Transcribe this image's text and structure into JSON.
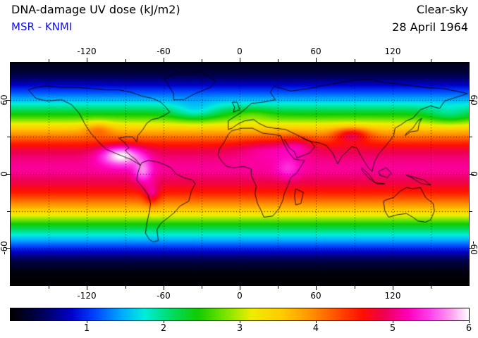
{
  "header": {
    "title": "DNA-damage UV dose (kJ/m2)",
    "source": "MSR - KNMI",
    "source_color": "#1111ee",
    "condition": "Clear-sky",
    "date": "28 April 1964"
  },
  "chart_data": {
    "type": "heatmap",
    "projection": "equirectangular",
    "title": "DNA-damage UV dose (kJ/m2)",
    "subtitle": "MSR - KNMI",
    "condition": "Clear-sky",
    "date": "28 April 1964",
    "xlim": [
      -180,
      180
    ],
    "ylim": [
      -90,
      90
    ],
    "x_grid_step": 30,
    "y_grid_step": 30,
    "x_tick_labels": [
      -120,
      -60,
      0,
      60,
      120
    ],
    "y_tick_labels": [
      60,
      0,
      -60
    ],
    "grid": "dotted",
    "unit": "kJ/m2",
    "colorbar": {
      "min": 0,
      "max": 6,
      "tick_labels": [
        1,
        2,
        3,
        4,
        5,
        6
      ],
      "stops": [
        [
          0.0,
          "#000000"
        ],
        [
          0.4,
          "#000055"
        ],
        [
          0.8,
          "#0000cc"
        ],
        [
          1.1,
          "#0044ff"
        ],
        [
          1.45,
          "#00aaff"
        ],
        [
          1.75,
          "#00eedd"
        ],
        [
          2.1,
          "#00dd66"
        ],
        [
          2.45,
          "#11cc00"
        ],
        [
          2.8,
          "#77e400"
        ],
        [
          3.15,
          "#eeee00"
        ],
        [
          3.55,
          "#ffcc00"
        ],
        [
          3.9,
          "#ff9900"
        ],
        [
          4.25,
          "#ff5500"
        ],
        [
          4.6,
          "#ff1100"
        ],
        [
          4.9,
          "#ee0055"
        ],
        [
          5.2,
          "#ff00bb"
        ],
        [
          5.5,
          "#ff44ee"
        ],
        [
          5.75,
          "#ff99ee"
        ],
        [
          6.0,
          "#ffffff"
        ]
      ]
    },
    "lat_profile": {
      "lats": [
        90,
        85,
        80,
        75,
        70,
        65,
        60,
        55,
        50,
        45,
        40,
        35,
        30,
        25,
        20,
        15,
        10,
        5,
        0,
        -5,
        -10,
        -15,
        -20,
        -25,
        -30,
        -35,
        -40,
        -45,
        -50,
        -55,
        -60,
        -65,
        -70,
        -80,
        -90
      ],
      "values": [
        0.12,
        0.2,
        0.35,
        0.6,
        0.9,
        1.2,
        1.5,
        1.9,
        2.3,
        2.7,
        3.2,
        3.7,
        4.1,
        4.5,
        4.8,
        4.95,
        5.05,
        5.1,
        5.05,
        4.9,
        4.75,
        4.55,
        4.25,
        3.9,
        3.5,
        3.0,
        2.5,
        2.1,
        1.7,
        1.35,
        1.0,
        0.65,
        0.35,
        0.05,
        0.0
      ]
    },
    "anomalies": [
      {
        "lon": -93,
        "lat": 15,
        "amp": 1.05,
        "rx": 16,
        "ry": 8
      },
      {
        "lon": -76,
        "lat": 2,
        "amp": 0.6,
        "rx": 7,
        "ry": 10
      },
      {
        "lon": -69,
        "lat": -17,
        "amp": 0.55,
        "rx": 6,
        "ry": 9
      },
      {
        "lon": -111,
        "lat": 37,
        "amp": 0.45,
        "rx": 11,
        "ry": 6
      },
      {
        "lon": 88,
        "lat": 32,
        "amp": 0.85,
        "rx": 14,
        "ry": 6
      },
      {
        "lon": 25,
        "lat": 21,
        "amp": 0.3,
        "rx": 26,
        "ry": 10
      },
      {
        "lon": 45,
        "lat": 24,
        "amp": 0.3,
        "rx": 12,
        "ry": 8
      },
      {
        "lon": 38,
        "lat": 4,
        "amp": 0.3,
        "rx": 9,
        "ry": 9
      },
      {
        "lon": -35,
        "lat": 50,
        "amp": -0.5,
        "rx": 18,
        "ry": 8
      },
      {
        "lon": 165,
        "lat": 47,
        "amp": -0.4,
        "rx": 18,
        "ry": 8
      },
      {
        "lon": 10,
        "lat": 48,
        "amp": 0.25,
        "rx": 15,
        "ry": 6
      }
    ],
    "coastlines": [
      {
        "name": "north-america",
        "pts": [
          [
            -166,
            68
          ],
          [
            -160,
            61
          ],
          [
            -151,
            59
          ],
          [
            -140,
            60
          ],
          [
            -132,
            56
          ],
          [
            -126,
            49
          ],
          [
            -122,
            41
          ],
          [
            -117,
            33
          ],
          [
            -110,
            25
          ],
          [
            -105,
            20
          ],
          [
            -96,
            16
          ],
          [
            -91,
            14
          ],
          [
            -86,
            12
          ],
          [
            -81,
            9
          ],
          [
            -78,
            7
          ],
          [
            -82,
            12
          ],
          [
            -86,
            15
          ],
          [
            -90,
            19
          ],
          [
            -87,
            21
          ],
          [
            -91,
            26
          ],
          [
            -95,
            29
          ],
          [
            -89,
            30
          ],
          [
            -84,
            30
          ],
          [
            -81,
            26
          ],
          [
            -80,
            31
          ],
          [
            -76,
            36
          ],
          [
            -73,
            41
          ],
          [
            -69,
            44
          ],
          [
            -64,
            45
          ],
          [
            -60,
            47
          ],
          [
            -55,
            50
          ],
          [
            -58,
            54
          ],
          [
            -62,
            58
          ],
          [
            -68,
            61
          ],
          [
            -77,
            63
          ],
          [
            -85,
            66
          ],
          [
            -95,
            68
          ],
          [
            -105,
            68
          ],
          [
            -115,
            69
          ],
          [
            -128,
            70
          ],
          [
            -140,
            70
          ],
          [
            -152,
            71
          ],
          [
            -160,
            70
          ],
          [
            -166,
            68
          ]
        ]
      },
      {
        "name": "south-america",
        "pts": [
          [
            -78,
            7
          ],
          [
            -80,
            1
          ],
          [
            -81,
            -5
          ],
          [
            -76,
            -11
          ],
          [
            -72,
            -17
          ],
          [
            -70,
            -24
          ],
          [
            -71,
            -31
          ],
          [
            -73,
            -40
          ],
          [
            -74,
            -48
          ],
          [
            -71,
            -53
          ],
          [
            -68,
            -55
          ],
          [
            -64,
            -54
          ],
          [
            -65,
            -45
          ],
          [
            -62,
            -40
          ],
          [
            -57,
            -36
          ],
          [
            -51,
            -31
          ],
          [
            -47,
            -26
          ],
          [
            -40,
            -22
          ],
          [
            -38,
            -14
          ],
          [
            -35,
            -8
          ],
          [
            -37,
            -5
          ],
          [
            -44,
            -3
          ],
          [
            -50,
            0
          ],
          [
            -54,
            5
          ],
          [
            -60,
            8
          ],
          [
            -66,
            10
          ],
          [
            -72,
            11
          ],
          [
            -77,
            9
          ],
          [
            -78,
            7
          ]
        ]
      },
      {
        "name": "africa",
        "pts": [
          [
            -6,
            35
          ],
          [
            2,
            37
          ],
          [
            10,
            37
          ],
          [
            18,
            33
          ],
          [
            26,
            32
          ],
          [
            32,
            31
          ],
          [
            35,
            24
          ],
          [
            38,
            18
          ],
          [
            43,
            12
          ],
          [
            48,
            11
          ],
          [
            51,
            11
          ],
          [
            45,
            1
          ],
          [
            40,
            -3
          ],
          [
            38,
            -9
          ],
          [
            35,
            -16
          ],
          [
            34,
            -21
          ],
          [
            31,
            -28
          ],
          [
            26,
            -34
          ],
          [
            19,
            -35
          ],
          [
            17,
            -30
          ],
          [
            14,
            -24
          ],
          [
            12,
            -16
          ],
          [
            13,
            -10
          ],
          [
            9,
            -1
          ],
          [
            9,
            4
          ],
          [
            3,
            6
          ],
          [
            -5,
            5
          ],
          [
            -10,
            6
          ],
          [
            -14,
            10
          ],
          [
            -17,
            15
          ],
          [
            -16,
            20
          ],
          [
            -12,
            26
          ],
          [
            -9,
            32
          ],
          [
            -6,
            35
          ]
        ]
      },
      {
        "name": "eurasia",
        "pts": [
          [
            -9,
            36
          ],
          [
            -9,
            43
          ],
          [
            -3,
            47
          ],
          [
            0,
            49
          ],
          [
            5,
            53
          ],
          [
            9,
            57
          ],
          [
            18,
            58
          ],
          [
            28,
            60
          ],
          [
            24,
            66
          ],
          [
            27,
            71
          ],
          [
            40,
            67
          ],
          [
            54,
            69
          ],
          [
            68,
            72
          ],
          [
            85,
            75
          ],
          [
            100,
            77
          ],
          [
            113,
            74
          ],
          [
            130,
            72
          ],
          [
            145,
            70
          ],
          [
            160,
            69
          ],
          [
            170,
            67
          ],
          [
            179,
            65
          ],
          [
            170,
            62
          ],
          [
            161,
            59
          ],
          [
            157,
            53
          ],
          [
            150,
            55
          ],
          [
            142,
            52
          ],
          [
            136,
            45
          ],
          [
            131,
            43
          ],
          [
            127,
            40
          ],
          [
            122,
            37
          ],
          [
            121,
            31
          ],
          [
            115,
            23
          ],
          [
            109,
            16
          ],
          [
            106,
            10
          ],
          [
            104,
            2
          ],
          [
            101,
            5
          ],
          [
            98,
            10
          ],
          [
            95,
            15
          ],
          [
            92,
            21
          ],
          [
            88,
            22
          ],
          [
            84,
            18
          ],
          [
            80,
            14
          ],
          [
            77,
            8
          ],
          [
            73,
            17
          ],
          [
            68,
            23
          ],
          [
            63,
            25
          ],
          [
            57,
            26
          ],
          [
            51,
            28
          ],
          [
            48,
            30
          ],
          [
            42,
            33
          ],
          [
            36,
            36
          ],
          [
            27,
            37
          ],
          [
            21,
            38
          ],
          [
            15,
            41
          ],
          [
            11,
            44
          ],
          [
            4,
            43
          ],
          [
            -2,
            40
          ],
          [
            -6,
            37
          ],
          [
            -9,
            36
          ]
        ]
      },
      {
        "name": "arabia",
        "pts": [
          [
            48,
            30
          ],
          [
            56,
            26
          ],
          [
            59,
            22
          ],
          [
            55,
            17
          ],
          [
            45,
            13
          ],
          [
            43,
            18
          ],
          [
            39,
            21
          ],
          [
            35,
            28
          ]
        ]
      },
      {
        "name": "greenland",
        "pts": [
          [
            -52,
            60
          ],
          [
            -44,
            60
          ],
          [
            -35,
            65
          ],
          [
            -23,
            70
          ],
          [
            -19,
            75
          ],
          [
            -29,
            82
          ],
          [
            -48,
            82
          ],
          [
            -59,
            77
          ],
          [
            -55,
            70
          ],
          [
            -52,
            65
          ],
          [
            -52,
            60
          ]
        ]
      },
      {
        "name": "australia",
        "pts": [
          [
            113,
            -22
          ],
          [
            114,
            -30
          ],
          [
            117,
            -35
          ],
          [
            124,
            -33
          ],
          [
            131,
            -32
          ],
          [
            136,
            -35
          ],
          [
            140,
            -38
          ],
          [
            146,
            -39
          ],
          [
            150,
            -37
          ],
          [
            153,
            -30
          ],
          [
            152,
            -24
          ],
          [
            146,
            -19
          ],
          [
            142,
            -11
          ],
          [
            136,
            -12
          ],
          [
            131,
            -11
          ],
          [
            126,
            -14
          ],
          [
            121,
            -19
          ],
          [
            115,
            -21
          ],
          [
            113,
            -22
          ]
        ]
      },
      {
        "name": "madagascar",
        "pts": [
          [
            44,
            -12
          ],
          [
            50,
            -15
          ],
          [
            48,
            -24
          ],
          [
            44,
            -25
          ],
          [
            43,
            -18
          ],
          [
            44,
            -12
          ]
        ]
      },
      {
        "name": "new-guinea",
        "pts": [
          [
            131,
            -1
          ],
          [
            138,
            -3
          ],
          [
            145,
            -5
          ],
          [
            150,
            -9
          ],
          [
            143,
            -8
          ],
          [
            135,
            -3
          ],
          [
            131,
            -1
          ]
        ]
      },
      {
        "name": "borneo",
        "pts": [
          [
            109,
            2
          ],
          [
            115,
            5
          ],
          [
            119,
            1
          ],
          [
            116,
            -3
          ],
          [
            110,
            -1
          ],
          [
            109,
            2
          ]
        ]
      },
      {
        "name": "sumatra-java",
        "pts": [
          [
            96,
            5
          ],
          [
            102,
            -1
          ],
          [
            106,
            -7
          ],
          [
            114,
            -8
          ],
          [
            108,
            -8
          ],
          [
            102,
            -4
          ],
          [
            96,
            3
          ],
          [
            96,
            5
          ]
        ]
      },
      {
        "name": "japan",
        "pts": [
          [
            130,
            31
          ],
          [
            134,
            34
          ],
          [
            140,
            35
          ],
          [
            141,
            41
          ],
          [
            143,
            45
          ],
          [
            140,
            43
          ],
          [
            136,
            37
          ],
          [
            131,
            33
          ],
          [
            130,
            31
          ]
        ]
      },
      {
        "name": "britain",
        "pts": [
          [
            -5,
            50
          ],
          [
            -4,
            54
          ],
          [
            -6,
            58
          ],
          [
            -2,
            58
          ],
          [
            0,
            52
          ],
          [
            -5,
            50
          ]
        ]
      }
    ]
  }
}
